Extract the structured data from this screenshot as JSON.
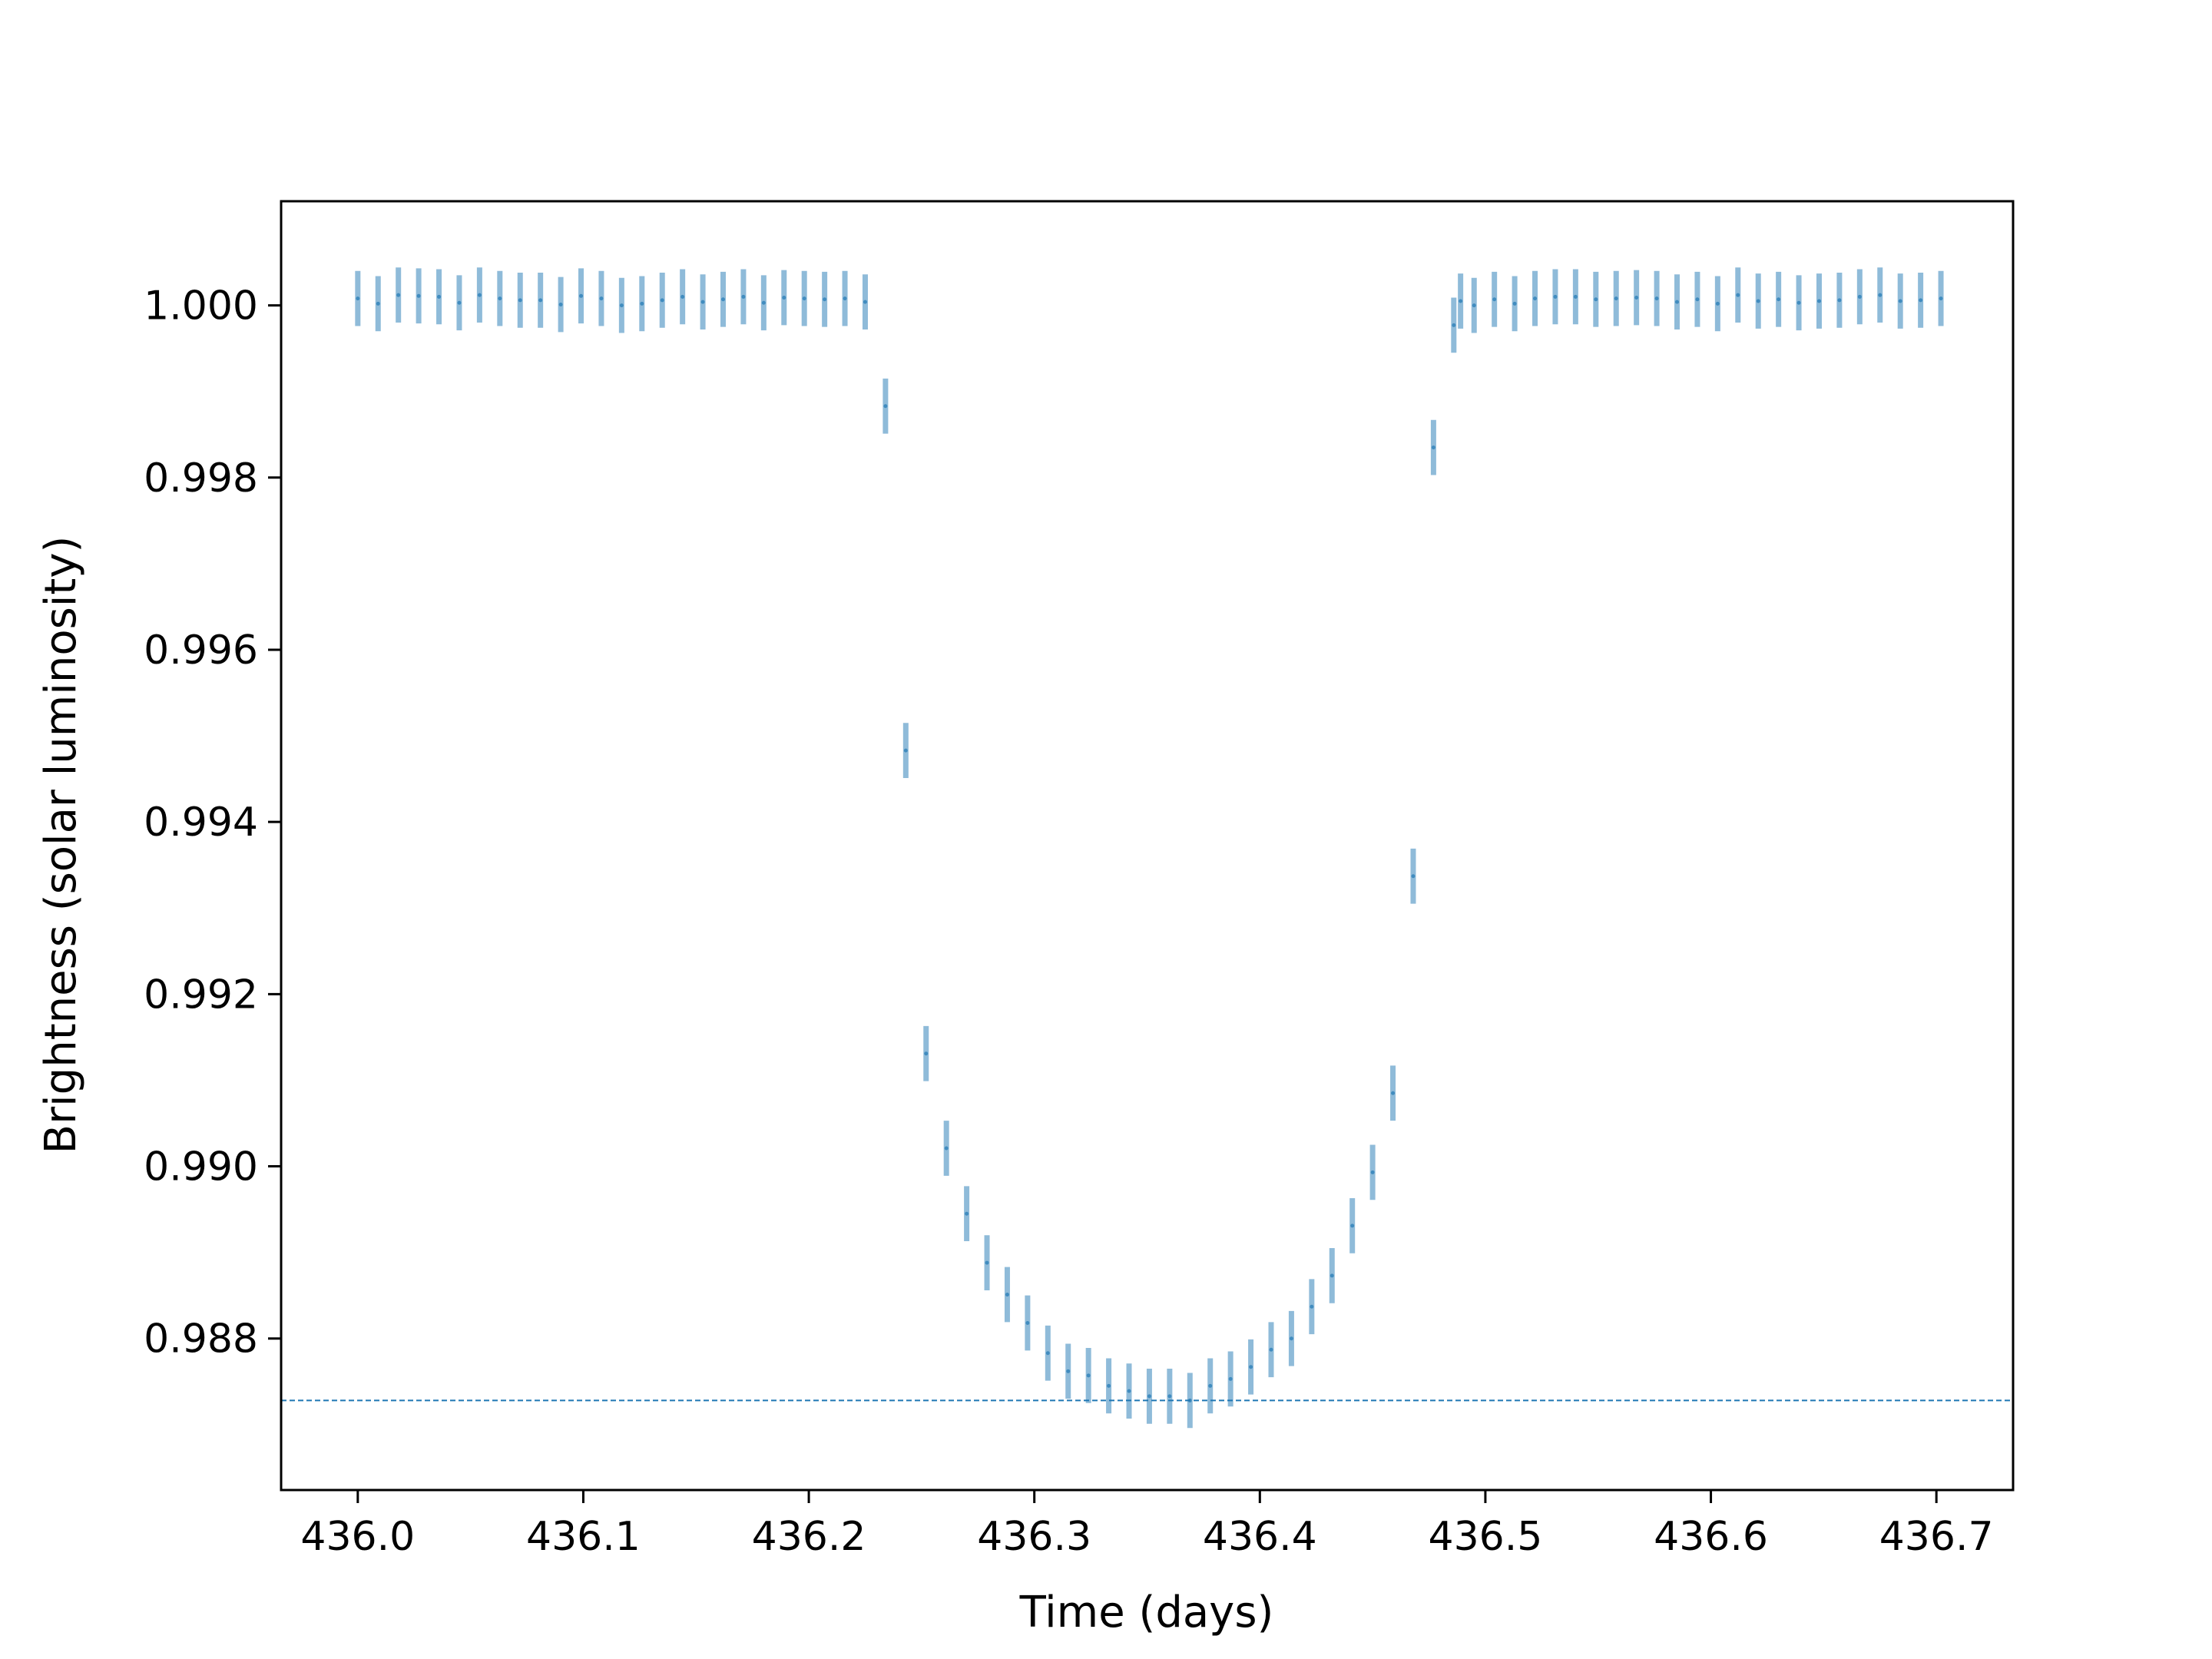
{
  "chart_data": {
    "type": "scatter",
    "title": "",
    "xlabel": "Time (days)",
    "ylabel": "Brightness (solar luminosity)",
    "xlim": [
      435.966,
      436.734
    ],
    "ylim": [
      0.98624,
      1.00121
    ],
    "xticks": [
      436.0,
      436.1,
      436.2,
      436.3,
      436.4,
      436.5,
      436.6,
      436.7
    ],
    "xtick_labels": [
      "436.0",
      "436.1",
      "436.2",
      "436.3",
      "436.4",
      "436.5",
      "436.6",
      "436.7"
    ],
    "yticks": [
      0.988,
      0.99,
      0.992,
      0.994,
      0.996,
      0.998,
      1.0
    ],
    "ytick_labels": [
      "0.988",
      "0.990",
      "0.992",
      "0.994",
      "0.996",
      "0.998",
      "1.000"
    ],
    "grid": false,
    "colors": {
      "errorbar": "#1f77b4",
      "reference_line": "#1f77b4"
    },
    "reference_line": {
      "y": 0.98728,
      "style": "dashed"
    },
    "series": [
      {
        "x": [
          436.0,
          436.009,
          436.018,
          436.027,
          436.036,
          436.045,
          436.054,
          436.063,
          436.072,
          436.081,
          436.09,
          436.099,
          436.108,
          436.117,
          436.126,
          436.135,
          436.144,
          436.153,
          436.162,
          436.171,
          436.18,
          436.189,
          436.198,
          436.207,
          436.216,
          436.225,
          436.234,
          436.243,
          436.252,
          436.261,
          436.27,
          436.279,
          436.288,
          436.297,
          436.306,
          436.315,
          436.324,
          436.333,
          436.342,
          436.351,
          436.36,
          436.369,
          436.378,
          436.387,
          436.396,
          436.405,
          436.414,
          436.423,
          436.432,
          436.441,
          436.45,
          436.459,
          436.468,
          436.477,
          436.486,
          436.489,
          436.495,
          436.504,
          436.513,
          436.522,
          436.531,
          436.54,
          436.549,
          436.558,
          436.567,
          436.576,
          436.585,
          436.594,
          436.603,
          436.612,
          436.621,
          436.63,
          436.639,
          436.648,
          436.657,
          436.666,
          436.675,
          436.684,
          436.693,
          436.702
        ],
        "y": [
          1.00008,
          1.00002,
          1.00012,
          1.00011,
          1.0001,
          1.00003,
          1.00012,
          1.00008,
          1.00006,
          1.00006,
          1.00001,
          1.00011,
          1.00008,
          1.0,
          1.00002,
          1.00006,
          1.0001,
          1.00004,
          1.00007,
          1.0001,
          1.00003,
          1.00009,
          1.00008,
          1.00007,
          1.00008,
          1.00004,
          0.99883,
          0.99483,
          0.99131,
          0.99021,
          0.98945,
          0.98888,
          0.98851,
          0.98818,
          0.98783,
          0.98762,
          0.98757,
          0.98745,
          0.98739,
          0.98733,
          0.98733,
          0.98728,
          0.98745,
          0.98753,
          0.98767,
          0.98787,
          0.988,
          0.98837,
          0.98873,
          0.98931,
          0.98993,
          0.99085,
          0.99337,
          0.99835,
          0.99977,
          1.00005,
          1.0,
          1.00007,
          1.00002,
          1.00008,
          1.0001,
          1.0001,
          1.00007,
          1.00008,
          1.00009,
          1.00008,
          1.00004,
          1.00007,
          1.00002,
          1.00012,
          1.00005,
          1.00007,
          1.00003,
          1.00005,
          1.00006,
          1.0001,
          1.00012,
          1.00005,
          1.00006,
          1.00008
        ],
        "yerr": 0.00032
      }
    ]
  }
}
